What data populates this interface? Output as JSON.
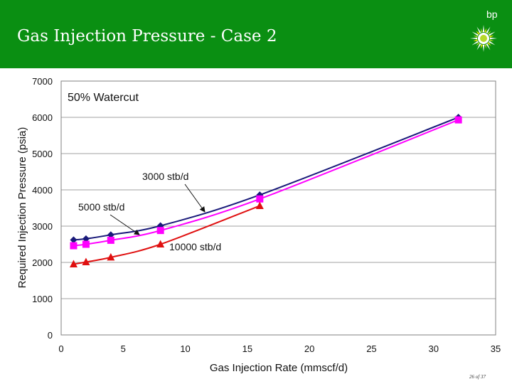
{
  "header": {
    "title": "Gas Injection Pressure - Case 2",
    "background": "#0a8f12",
    "brand_text": "bp",
    "brand_icon": "helios-logo"
  },
  "page_number": "26 of 37",
  "chart_data": {
    "type": "line",
    "title": "50% Watercut",
    "xlabel": "Gas Injection Rate (mmscf/d)",
    "ylabel": "Required Injection Pressure (psia)",
    "xlim": [
      0,
      35
    ],
    "ylim": [
      0,
      7000
    ],
    "xticks": [
      0,
      5,
      10,
      15,
      20,
      25,
      30,
      35
    ],
    "yticks": [
      0,
      1000,
      2000,
      3000,
      4000,
      5000,
      6000,
      7000
    ],
    "grid": "horizontal",
    "series": [
      {
        "name": "3000 stb/d",
        "color": "#1a1a7a",
        "marker": "diamond",
        "x": [
          1,
          2,
          4,
          8,
          16,
          32
        ],
        "y": [
          2620,
          2650,
          2760,
          3010,
          3860,
          6000
        ]
      },
      {
        "name": "5000 stb/d",
        "color": "#ff00ff",
        "marker": "square",
        "x": [
          1,
          2,
          4,
          8,
          16,
          32
        ],
        "y": [
          2460,
          2500,
          2610,
          2880,
          3750,
          5930
        ]
      },
      {
        "name": "10000 stb/d",
        "color": "#e01010",
        "marker": "triangle",
        "x": [
          1,
          2,
          4,
          8,
          16
        ],
        "y": [
          1950,
          2010,
          2140,
          2500,
          3560
        ]
      }
    ]
  }
}
